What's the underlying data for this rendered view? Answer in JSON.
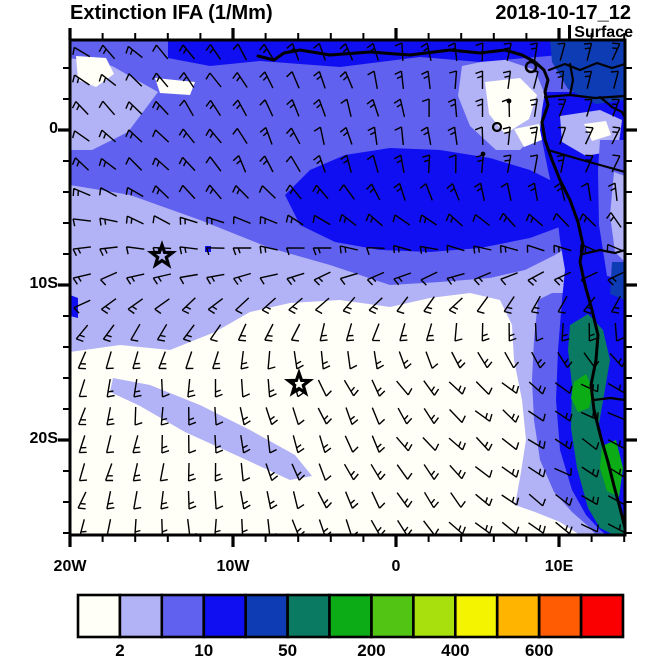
{
  "header": {
    "title": "Extinction IFA (1/Mm)",
    "datetime": "2018-10-17_12",
    "level": "Surface"
  },
  "chart_data": {
    "type": "heatmap",
    "subtype": "filled-contour-map-with-wind-barbs",
    "title": "Extinction IFA (1/Mm)",
    "variable": "Extinction IFA",
    "units": "1/Mm",
    "datetime": "2018-10-17_12",
    "level": "Surface",
    "x_axis": {
      "tick_labels": [
        "20W",
        "10W",
        "0",
        "10E"
      ],
      "approx_range_deg": [
        -20,
        14
      ]
    },
    "y_axis": {
      "tick_labels": [
        "0",
        "10S",
        "20S"
      ],
      "approx_range_deg": [
        6,
        -26
      ]
    },
    "colorbar": {
      "tick_labels": [
        "2",
        "10",
        "50",
        "200",
        "400",
        "600"
      ],
      "labeled_boundaries": [
        1,
        3,
        5,
        7,
        9,
        11
      ],
      "colors": [
        "#fffef7",
        "#b2b2f6",
        "#6161ef",
        "#0f0ff2",
        "#0d3cb4",
        "#0a7a62",
        "#0cac16",
        "#52c414",
        "#a8e00e",
        "#f4f400",
        "#ffb400",
        "#ff5c04",
        "#fa0000"
      ],
      "outline_color": "#000000"
    },
    "markers": [
      {
        "name": "station-star-1",
        "symbol": "star",
        "approx_lon": "14.4W",
        "approx_lat": "8S"
      },
      {
        "name": "station-star-2",
        "symbol": "star",
        "approx_lon": "6W",
        "approx_lat": "16.4S"
      }
    ],
    "field_summary": "Lowest extinction (white, <2/Mm) over the subtropical SE Atlantic; 2-20/Mm (light blue-violet) over the NW half; 20-50/Mm core (strong blue) along 2-6S stretching to the African coast and along the Angola coast; 50-200/Mm (navy/teal) over West Africa at top-right corner and coastal Angola; small 200-400/Mm (green) patches at the Angola coast; wind barbs show anticyclonic South Atlantic flow (SE trades in the south turning northerly near the equator)"
  }
}
